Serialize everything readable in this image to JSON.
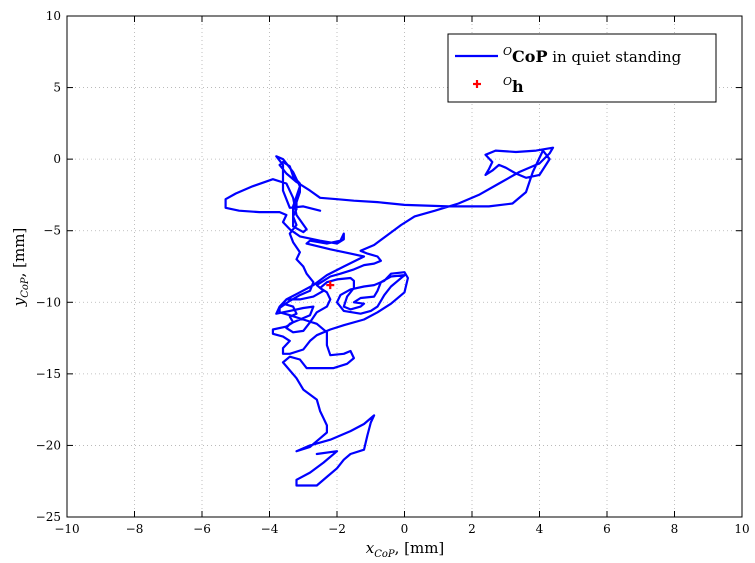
{
  "chart_data": {
    "type": "line",
    "title": "",
    "xlabel": {
      "var": "x",
      "sub": "CoP",
      "unit": ", [mm]"
    },
    "ylabel": {
      "var": "y",
      "sub": "CoP",
      "unit": ", [mm]"
    },
    "xlim": [
      -10,
      10
    ],
    "ylim": [
      -25,
      10
    ],
    "xticks": [
      -10,
      -8,
      -6,
      -4,
      -2,
      0,
      2,
      4,
      6,
      8,
      10
    ],
    "yticks": [
      -25,
      -20,
      -15,
      -10,
      -5,
      0,
      5,
      10
    ],
    "xtick_labels": [
      "−10",
      "−8",
      "−6",
      "−4",
      "−2",
      "0",
      "2",
      "4",
      "6",
      "8",
      "10"
    ],
    "ytick_labels": [
      "−25",
      "−20",
      "−15",
      "−10",
      "−5",
      "0",
      "5",
      "10"
    ],
    "grid": true,
    "legend_position": "top-right",
    "colors": {
      "series": "#0000ff",
      "marker": "#ff0000"
    },
    "series": [
      {
        "name": "CoP in quiet standing",
        "legend_sup": "O",
        "legend_bold": "CoP",
        "legend_rest": " in quiet standing",
        "points": [
          [
            -2.5,
            -3.6
          ],
          [
            -3.0,
            -3.3
          ],
          [
            -3.4,
            -3.4
          ],
          [
            -3.6,
            -2.2
          ],
          [
            -3.6,
            -0.4
          ],
          [
            -3.8,
            0.2
          ],
          [
            -3.6,
            0.0
          ],
          [
            -3.3,
            -0.9
          ],
          [
            -3.1,
            -1.9
          ],
          [
            -3.3,
            -3.3
          ],
          [
            -3.3,
            -4.7
          ],
          [
            -3.0,
            -5.1
          ],
          [
            -2.9,
            -4.9
          ],
          [
            -3.2,
            -3.9
          ],
          [
            -3.3,
            -2.7
          ],
          [
            -3.5,
            -1.7
          ],
          [
            -3.9,
            -1.4
          ],
          [
            -4.5,
            -1.9
          ],
          [
            -5.0,
            -2.4
          ],
          [
            -5.3,
            -2.8
          ],
          [
            -5.3,
            -3.4
          ],
          [
            -4.9,
            -3.6
          ],
          [
            -4.3,
            -3.7
          ],
          [
            -3.7,
            -3.7
          ],
          [
            -3.5,
            -3.9
          ],
          [
            -3.6,
            -4.4
          ],
          [
            -3.4,
            -4.9
          ],
          [
            -3.1,
            -5.4
          ],
          [
            -2.5,
            -5.7
          ],
          [
            -2.0,
            -5.9
          ],
          [
            -1.8,
            -5.6
          ],
          [
            -1.8,
            -5.2
          ],
          [
            -1.9,
            -5.7
          ],
          [
            -2.3,
            -5.9
          ],
          [
            -2.8,
            -5.7
          ],
          [
            -2.9,
            -5.9
          ],
          [
            -2.2,
            -6.3
          ],
          [
            -1.6,
            -6.6
          ],
          [
            -1.2,
            -6.8
          ],
          [
            -1.8,
            -7.5
          ],
          [
            -2.3,
            -8.1
          ],
          [
            -2.7,
            -8.8
          ],
          [
            -3.1,
            -9.3
          ],
          [
            -3.5,
            -9.8
          ],
          [
            -3.7,
            -10.3
          ],
          [
            -3.8,
            -10.8
          ],
          [
            -3.4,
            -10.6
          ],
          [
            -3.0,
            -10.4
          ],
          [
            -2.7,
            -10.3
          ],
          [
            -2.8,
            -10.9
          ],
          [
            -3.1,
            -11.2
          ],
          [
            -3.4,
            -11.5
          ],
          [
            -3.5,
            -11.8
          ],
          [
            -3.3,
            -12.1
          ],
          [
            -3.0,
            -12.0
          ],
          [
            -2.8,
            -11.4
          ],
          [
            -2.6,
            -10.7
          ],
          [
            -2.3,
            -10.3
          ],
          [
            -2.2,
            -9.8
          ],
          [
            -2.3,
            -9.3
          ],
          [
            -2.5,
            -9.0
          ],
          [
            -2.3,
            -8.6
          ],
          [
            -2.0,
            -8.4
          ],
          [
            -1.6,
            -8.3
          ],
          [
            -1.5,
            -8.5
          ],
          [
            -1.5,
            -9.0
          ],
          [
            -1.7,
            -9.6
          ],
          [
            -1.8,
            -10.3
          ],
          [
            -1.6,
            -10.5
          ],
          [
            -1.3,
            -10.3
          ],
          [
            -1.2,
            -10.1
          ],
          [
            -1.5,
            -10.0
          ],
          [
            -1.3,
            -9.7
          ],
          [
            -0.9,
            -9.6
          ],
          [
            -0.8,
            -9.2
          ],
          [
            -0.7,
            -8.6
          ],
          [
            -0.4,
            -8.2
          ],
          [
            0.0,
            -8.1
          ],
          [
            -0.2,
            -8.5
          ],
          [
            -0.4,
            -8.9
          ],
          [
            -0.6,
            -9.5
          ],
          [
            -0.8,
            -10.3
          ],
          [
            -1.0,
            -10.6
          ],
          [
            -1.3,
            -10.8
          ],
          [
            -1.8,
            -10.6
          ],
          [
            -2.0,
            -10.0
          ],
          [
            -1.9,
            -9.5
          ],
          [
            -1.6,
            -9.1
          ],
          [
            -1.2,
            -8.9
          ],
          [
            -0.9,
            -8.8
          ],
          [
            -0.6,
            -8.5
          ],
          [
            -0.4,
            -8.0
          ],
          [
            0.0,
            -7.9
          ],
          [
            0.1,
            -8.3
          ],
          [
            0.0,
            -9.3
          ],
          [
            -0.4,
            -10.1
          ],
          [
            -0.8,
            -10.7
          ],
          [
            -1.2,
            -11.2
          ],
          [
            -1.8,
            -11.6
          ],
          [
            -2.2,
            -11.9
          ],
          [
            -2.6,
            -12.3
          ],
          [
            -2.8,
            -12.7
          ],
          [
            -3.0,
            -13.3
          ],
          [
            -3.4,
            -13.6
          ],
          [
            -3.6,
            -13.6
          ],
          [
            -3.6,
            -13.2
          ],
          [
            -3.4,
            -12.7
          ],
          [
            -3.6,
            -12.4
          ],
          [
            -3.9,
            -12.2
          ],
          [
            -3.9,
            -11.9
          ],
          [
            -3.5,
            -11.7
          ],
          [
            -3.3,
            -11.4
          ],
          [
            -3.4,
            -11.0
          ],
          [
            -3.2,
            -10.8
          ],
          [
            -3.3,
            -10.3
          ],
          [
            -3.6,
            -10.1
          ],
          [
            -3.5,
            -9.8
          ],
          [
            -3.1,
            -9.8
          ],
          [
            -2.7,
            -9.6
          ],
          [
            -2.4,
            -9.2
          ],
          [
            -2.6,
            -8.8
          ],
          [
            -2.4,
            -8.5
          ],
          [
            -2.2,
            -8.2
          ],
          [
            -1.9,
            -8.0
          ],
          [
            -1.5,
            -7.7
          ],
          [
            -1.2,
            -7.4
          ],
          [
            -0.9,
            -7.3
          ],
          [
            -0.7,
            -7.1
          ],
          [
            -0.8,
            -6.8
          ],
          [
            -1.1,
            -6.6
          ],
          [
            -1.3,
            -6.4
          ],
          [
            -0.9,
            -6.0
          ],
          [
            -0.5,
            -5.3
          ],
          [
            -0.1,
            -4.6
          ],
          [
            0.3,
            -4.0
          ],
          [
            0.9,
            -3.6
          ],
          [
            1.6,
            -3.1
          ],
          [
            2.2,
            -2.5
          ],
          [
            2.8,
            -1.7
          ],
          [
            3.4,
            -0.9
          ],
          [
            4.0,
            -0.3
          ],
          [
            4.3,
            0.4
          ],
          [
            4.4,
            0.8
          ],
          [
            3.9,
            0.6
          ],
          [
            3.3,
            0.5
          ],
          [
            2.7,
            0.6
          ],
          [
            2.4,
            0.3
          ],
          [
            2.6,
            -0.2
          ],
          [
            2.5,
            -0.7
          ],
          [
            2.4,
            -1.1
          ],
          [
            2.6,
            -0.8
          ],
          [
            2.8,
            -0.4
          ],
          [
            3.0,
            -0.6
          ],
          [
            3.3,
            -1.0
          ],
          [
            3.6,
            -1.3
          ],
          [
            4.0,
            -1.1
          ],
          [
            4.3,
            0.0
          ],
          [
            4.1,
            0.6
          ],
          [
            3.8,
            -0.9
          ],
          [
            3.6,
            -2.3
          ],
          [
            3.2,
            -3.1
          ],
          [
            2.5,
            -3.3
          ],
          [
            1.3,
            -3.3
          ],
          [
            0.0,
            -3.2
          ],
          [
            -0.8,
            -3.0
          ],
          [
            -1.5,
            -2.9
          ],
          [
            -2.0,
            -2.8
          ],
          [
            -2.5,
            -2.7
          ],
          [
            -2.8,
            -2.2
          ],
          [
            -3.2,
            -1.6
          ],
          [
            -3.5,
            -1.0
          ],
          [
            -3.7,
            -0.4
          ],
          [
            -3.6,
            -0.2
          ],
          [
            -3.4,
            -0.5
          ],
          [
            -3.3,
            -1.2
          ],
          [
            -3.1,
            -1.7
          ],
          [
            -3.1,
            -2.3
          ],
          [
            -3.2,
            -3.0
          ],
          [
            -3.2,
            -3.5
          ],
          [
            -3.3,
            -4.0
          ],
          [
            -3.2,
            -4.6
          ],
          [
            -3.4,
            -5.2
          ],
          [
            -3.3,
            -5.8
          ],
          [
            -3.1,
            -6.5
          ],
          [
            -3.2,
            -7.0
          ],
          [
            -3.0,
            -7.5
          ],
          [
            -2.9,
            -8.0
          ],
          [
            -2.7,
            -8.6
          ],
          [
            -2.8,
            -9.2
          ],
          [
            -3.1,
            -9.5
          ],
          [
            -3.4,
            -9.9
          ],
          [
            -3.7,
            -10.4
          ],
          [
            -3.7,
            -10.7
          ],
          [
            -3.4,
            -10.9
          ],
          [
            -3.0,
            -11.2
          ],
          [
            -2.6,
            -11.5
          ],
          [
            -2.3,
            -12.1
          ],
          [
            -2.3,
            -13.0
          ],
          [
            -2.2,
            -13.7
          ],
          [
            -1.8,
            -13.6
          ],
          [
            -1.6,
            -13.4
          ],
          [
            -1.5,
            -13.9
          ],
          [
            -1.7,
            -14.3
          ],
          [
            -2.1,
            -14.6
          ],
          [
            -2.9,
            -14.6
          ],
          [
            -3.1,
            -14.0
          ],
          [
            -3.4,
            -13.8
          ],
          [
            -3.6,
            -14.2
          ],
          [
            -3.2,
            -15.3
          ],
          [
            -3.0,
            -16.1
          ],
          [
            -2.6,
            -16.8
          ],
          [
            -2.5,
            -17.6
          ],
          [
            -2.4,
            -18.1
          ],
          [
            -2.3,
            -18.6
          ],
          [
            -2.3,
            -19.1
          ],
          [
            -2.5,
            -19.5
          ],
          [
            -2.8,
            -20.1
          ],
          [
            -3.2,
            -20.4
          ],
          [
            -2.8,
            -20.0
          ],
          [
            -2.2,
            -19.6
          ],
          [
            -1.6,
            -19.0
          ],
          [
            -1.2,
            -18.5
          ],
          [
            -0.9,
            -17.9
          ],
          [
            -1.0,
            -18.4
          ],
          [
            -1.1,
            -19.3
          ],
          [
            -1.2,
            -20.3
          ],
          [
            -1.6,
            -20.6
          ],
          [
            -1.8,
            -21.0
          ],
          [
            -2.0,
            -21.6
          ],
          [
            -2.3,
            -22.2
          ],
          [
            -2.6,
            -22.8
          ],
          [
            -3.0,
            -22.8
          ],
          [
            -3.2,
            -22.8
          ],
          [
            -3.2,
            -22.4
          ],
          [
            -2.8,
            -21.9
          ],
          [
            -2.4,
            -21.2
          ],
          [
            -2.0,
            -20.4
          ],
          [
            -2.6,
            -20.6
          ]
        ]
      }
    ],
    "marker": {
      "name": "h",
      "legend_sup": "O",
      "legend_bold": "h",
      "x": -2.2,
      "y": -8.8
    }
  }
}
